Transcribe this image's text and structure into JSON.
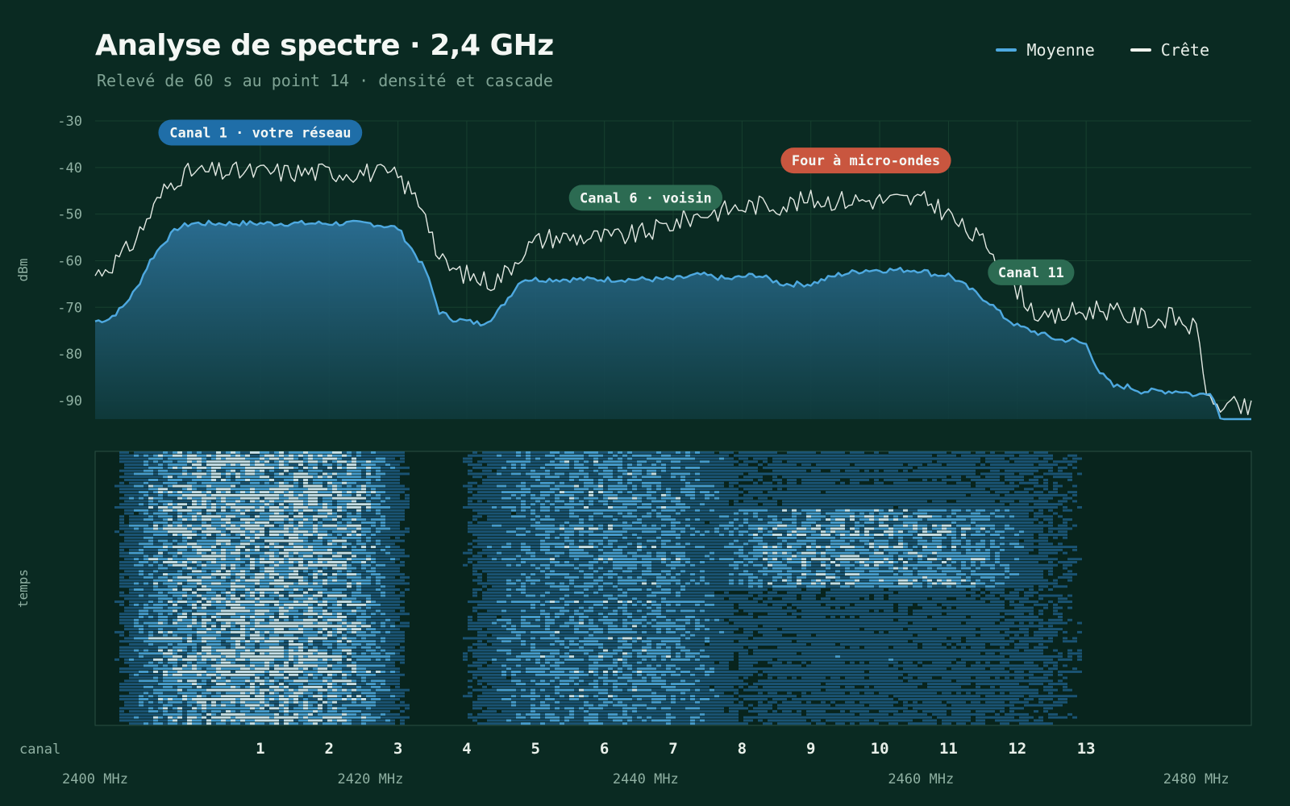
{
  "header": {
    "title": "Analyse de spectre · 2,4 GHz",
    "subtitle": "Relevé de 60 s au point 14 · densité et cascade"
  },
  "legend": [
    {
      "label": "Moyenne",
      "color": "#4ea9e0"
    },
    {
      "label": "Crête",
      "color": "#f0f3ee"
    }
  ],
  "colors": {
    "background": "#0a2a22",
    "grid": "#17402f",
    "avg_line": "#4ea9e0",
    "peak_line": "#e3e9e3",
    "tick_text": "#8fb0a2"
  },
  "chart_data": [
    {
      "type": "area",
      "ylabel": "dBm",
      "ylim": [
        -94,
        -30
      ],
      "yticks": [
        -30,
        -40,
        -50,
        -60,
        -70,
        -80,
        -90
      ],
      "xlim": [
        2400,
        2484
      ],
      "grid": true,
      "legend_position": "top-right",
      "x_unit": "MHz",
      "series": [
        {
          "name": "Moyenne",
          "x": [
            2400,
            2401,
            2402,
            2403,
            2404,
            2405,
            2406,
            2407,
            2408,
            2409,
            2410,
            2412,
            2414,
            2416,
            2418,
            2420,
            2422,
            2424,
            2425,
            2426,
            2427,
            2428,
            2429,
            2430,
            2431,
            2432,
            2433,
            2434,
            2435,
            2436,
            2437,
            2438,
            2440,
            2442,
            2444,
            2446,
            2448,
            2450,
            2452,
            2454,
            2456,
            2458,
            2460,
            2461,
            2462,
            2463,
            2464,
            2465,
            2466,
            2467,
            2468,
            2469,
            2470,
            2471,
            2472,
            2473,
            2474,
            2475,
            2476,
            2477,
            2478,
            2479,
            2480,
            2481,
            2482,
            2483,
            2484
          ],
          "values": [
            -73,
            -72.5,
            -70,
            -66,
            -60,
            -56,
            -53,
            -52,
            -52,
            -52,
            -52,
            -52,
            -52,
            -52,
            -52,
            -52,
            -53,
            -62,
            -71,
            -72.5,
            -73,
            -73.5,
            -72,
            -68,
            -64,
            -64,
            -64,
            -64,
            -64,
            -64,
            -64,
            -64,
            -64,
            -64,
            -63,
            -64,
            -63,
            -65,
            -65,
            -63,
            -62,
            -62,
            -62,
            -63,
            -63,
            -65,
            -67,
            -69,
            -72,
            -74,
            -75,
            -76,
            -77,
            -77,
            -78,
            -84,
            -87,
            -87,
            -88,
            -88,
            -88,
            -88,
            -89,
            -88,
            -95,
            -95.3,
            -95.5
          ]
        },
        {
          "name": "Crête",
          "x": [
            2400,
            2401,
            2402,
            2403,
            2404,
            2405,
            2406,
            2407,
            2408,
            2409,
            2410,
            2412,
            2414,
            2416,
            2418,
            2420,
            2422,
            2424,
            2425,
            2426,
            2427,
            2428,
            2429,
            2430,
            2431,
            2432,
            2433,
            2434,
            2435,
            2436,
            2437,
            2438,
            2440,
            2442,
            2444,
            2446,
            2448,
            2450,
            2452,
            2454,
            2456,
            2458,
            2460,
            2461,
            2462,
            2463,
            2464,
            2465,
            2466,
            2467,
            2468,
            2469,
            2470,
            2471,
            2472,
            2473,
            2474,
            2475,
            2476,
            2477,
            2478,
            2479,
            2480,
            2481,
            2482,
            2483,
            2484
          ],
          "values": [
            -63,
            -61,
            -59,
            -55,
            -50,
            -45,
            -42,
            -41,
            -41,
            -41,
            -41,
            -41,
            -41,
            -41,
            -41,
            -41,
            -42,
            -49,
            -60,
            -62,
            -63,
            -64,
            -64.5,
            -62,
            -58,
            -56,
            -55,
            -55,
            -55,
            -55,
            -55,
            -55,
            -54,
            -52,
            -50,
            -49,
            -48,
            -48,
            -47,
            -47,
            -47,
            -47,
            -47,
            -48,
            -50,
            -53,
            -55,
            -57,
            -62,
            -66,
            -70,
            -73,
            -72,
            -71,
            -71,
            -70,
            -71,
            -72,
            -72,
            -73,
            -72,
            -73,
            -75,
            -91,
            -91,
            -91.5,
            -92
          ]
        }
      ],
      "secondary_axis": {
        "label": "canal",
        "channels": [
          {
            "label": "1",
            "mhz": 2412
          },
          {
            "label": "2",
            "mhz": 2417
          },
          {
            "label": "3",
            "mhz": 2422
          },
          {
            "label": "4",
            "mhz": 2427
          },
          {
            "label": "5",
            "mhz": 2432
          },
          {
            "label": "6",
            "mhz": 2437
          },
          {
            "label": "7",
            "mhz": 2442
          },
          {
            "label": "8",
            "mhz": 2447
          },
          {
            "label": "9",
            "mhz": 2452
          },
          {
            "label": "10",
            "mhz": 2457
          },
          {
            "label": "11",
            "mhz": 2462
          },
          {
            "label": "12",
            "mhz": 2467
          },
          {
            "label": "13",
            "mhz": 2472
          }
        ]
      },
      "x_tick_labels": [
        {
          "label": "2400 MHz",
          "mhz": 2400
        },
        {
          "label": "2420 MHz",
          "mhz": 2420
        },
        {
          "label": "2440 MHz",
          "mhz": 2440
        },
        {
          "label": "2460 MHz",
          "mhz": 2460
        },
        {
          "label": "2480 MHz",
          "mhz": 2480
        }
      ],
      "annotations": [
        {
          "text": "Canal 1 · votre réseau",
          "mhz": 2412,
          "dbm": -32.5,
          "color": "#1f6ea8"
        },
        {
          "text": "Four à micro-ondes",
          "mhz": 2456,
          "dbm": -38.5,
          "color": "#c9563f"
        },
        {
          "text": "Canal 6 · voisin",
          "mhz": 2440,
          "dbm": -46.5,
          "color": "#2c6b52"
        },
        {
          "text": "Canal 11",
          "mhz": 2468,
          "dbm": -62.5,
          "color": "#2c6b52"
        }
      ]
    },
    {
      "type": "heatmap",
      "ylabel": "temps",
      "xlim": [
        2400,
        2484
      ],
      "duration_s": 60,
      "colors": [
        "#0a2a22",
        "#1f5f8a",
        "#4ea9e0",
        "#cfe9f2"
      ],
      "bands": [
        {
          "name": "Canal 1",
          "center_mhz": 2412,
          "width_mhz": 22,
          "intensity": 0.9
        },
        {
          "name": "Canal 6",
          "center_mhz": 2437,
          "width_mhz": 22,
          "intensity": 0.55
        },
        {
          "name": "Four à micro-ondes",
          "center_mhz": 2456,
          "width_mhz": 28,
          "intensity": 0.5
        },
        {
          "name": "Canal 11",
          "center_mhz": 2462,
          "width_mhz": 22,
          "intensity": 0.25
        }
      ]
    }
  ]
}
